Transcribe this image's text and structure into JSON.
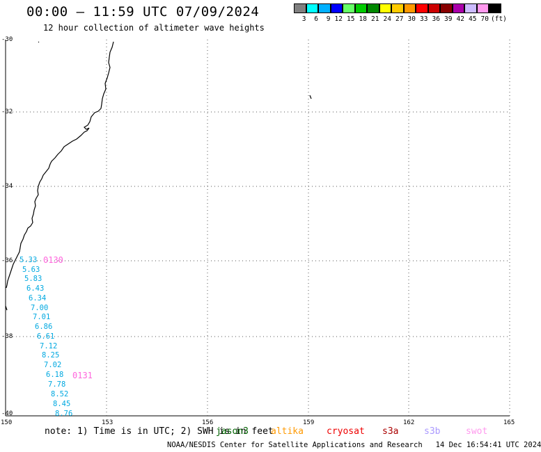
{
  "header": {
    "title": "00:00 – 11:59 UTC 07/09/2024",
    "subtitle": "12 hour collection of altimeter wave heights"
  },
  "color_scale": {
    "colors": [
      "#808080",
      "#00ffff",
      "#00b0ff",
      "#0000ff",
      "#66ff66",
      "#00cc00",
      "#008800",
      "#ffff00",
      "#ffcc00",
      "#ff9900",
      "#ff0000",
      "#cc0000",
      "#880000",
      "#aa00aa",
      "#ccbbff",
      "#ff99ee",
      "#000000"
    ],
    "labels": [
      "3",
      "6",
      "9",
      "12",
      "15",
      "18",
      "21",
      "24",
      "27",
      "30",
      "33",
      "36",
      "39",
      "42",
      "45",
      "70"
    ],
    "unit": "(ft)"
  },
  "axes": {
    "lat_labels": [
      "-30",
      "-32",
      "-34",
      "-36",
      "-38",
      "-40"
    ],
    "lon_labels": [
      "150",
      "153",
      "156",
      "159",
      "162",
      "165"
    ]
  },
  "passes": {
    "labels": [
      "0130",
      "0131"
    ],
    "swh_values": [
      "5.33",
      "5.63",
      "5.83",
      "6.43",
      "6.34",
      "7.00",
      "7.01",
      "6.86",
      "6.61",
      "7.12",
      "8.25",
      "7.02",
      "6.18",
      "7.78",
      "8.52",
      "8.45",
      "8.76"
    ]
  },
  "footer": {
    "note": "note: 1) Time is in UTC; 2) SWH is in feet",
    "satellites": [
      {
        "name": "jason3",
        "color": "#006400"
      },
      {
        "name": "altika",
        "color": "#ff9900"
      },
      {
        "name": "cryosat",
        "color": "#ee0000"
      },
      {
        "name": "s3a",
        "color": "#aa0000"
      },
      {
        "name": "s3b",
        "color": "#aa99ff"
      },
      {
        "name": "swot",
        "color": "#ff99ee"
      }
    ],
    "credit": "NOAA/NESDIS Center for Satellite Applications and Research",
    "timestamp": "14 Dec 16:54:41 UTC 2024"
  }
}
